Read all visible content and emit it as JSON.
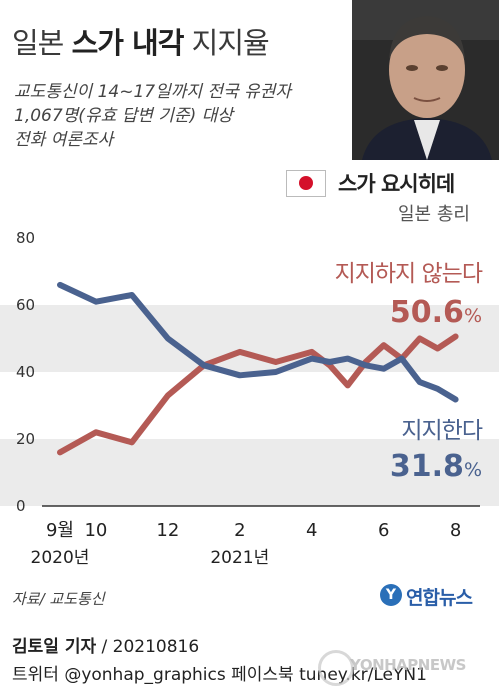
{
  "header": {
    "title_prefix": "일본",
    "title_bold": "스가 내각",
    "title_suffix": "지지율",
    "subtitle": "교도통신이 14~17일까지 전국 유권자\n1,067명(유효 답변 기준) 대상\n전화 여론조사"
  },
  "profile": {
    "name": "스가 요시히데",
    "role": "일본 총리",
    "flag_icon": "japan-flag-icon"
  },
  "chart_data": {
    "type": "line",
    "title": "",
    "xlabel": "",
    "ylabel": "",
    "ylim": [
      0,
      80
    ],
    "yticks": [
      0,
      20,
      40,
      60,
      80
    ],
    "grid": "horizontal bands",
    "x_tick_labels": [
      {
        "label": "9월",
        "x": 9
      },
      {
        "label": "10",
        "x": 10
      },
      {
        "label": "12",
        "x": 12
      },
      {
        "label": "2",
        "x": 14
      },
      {
        "label": "4",
        "x": 16
      },
      {
        "label": "6",
        "x": 18
      },
      {
        "label": "8",
        "x": 20
      }
    ],
    "year_labels": [
      {
        "label": "2020년",
        "x": 9
      },
      {
        "label": "2021년",
        "x": 14
      }
    ],
    "x": [
      9,
      10,
      11,
      12,
      13,
      14,
      15,
      16,
      16.5,
      17,
      17.5,
      18,
      18.5,
      19,
      19.5,
      20
    ],
    "series": [
      {
        "name": "지지하지 않는다",
        "color": "#b45a55",
        "values": [
          16,
          22,
          19,
          33,
          42,
          46,
          43,
          46,
          42,
          36,
          43,
          48,
          44,
          50,
          47,
          50.6
        ],
        "latest_label": "50.6",
        "unit": "%"
      },
      {
        "name": "지지한다",
        "color": "#4a628f",
        "values": [
          66,
          61,
          63,
          50,
          42,
          39,
          40,
          44,
          43,
          44,
          42,
          41,
          44,
          37,
          35,
          31.8
        ],
        "latest_label": "31.8",
        "unit": "%"
      }
    ]
  },
  "footer": {
    "source": "자료/ 교도통신",
    "logo_text": "연합뉴스",
    "reporter": "김토일 기자",
    "date": "/ 20210816",
    "social": "트위터 @yonhap_graphics  페이스북 tuney.kr/LeYN1",
    "watermark": "YONHAPNEWS"
  },
  "colors": {
    "oppose": "#b45a55",
    "support": "#4a628f",
    "band": "#ebebeb"
  }
}
